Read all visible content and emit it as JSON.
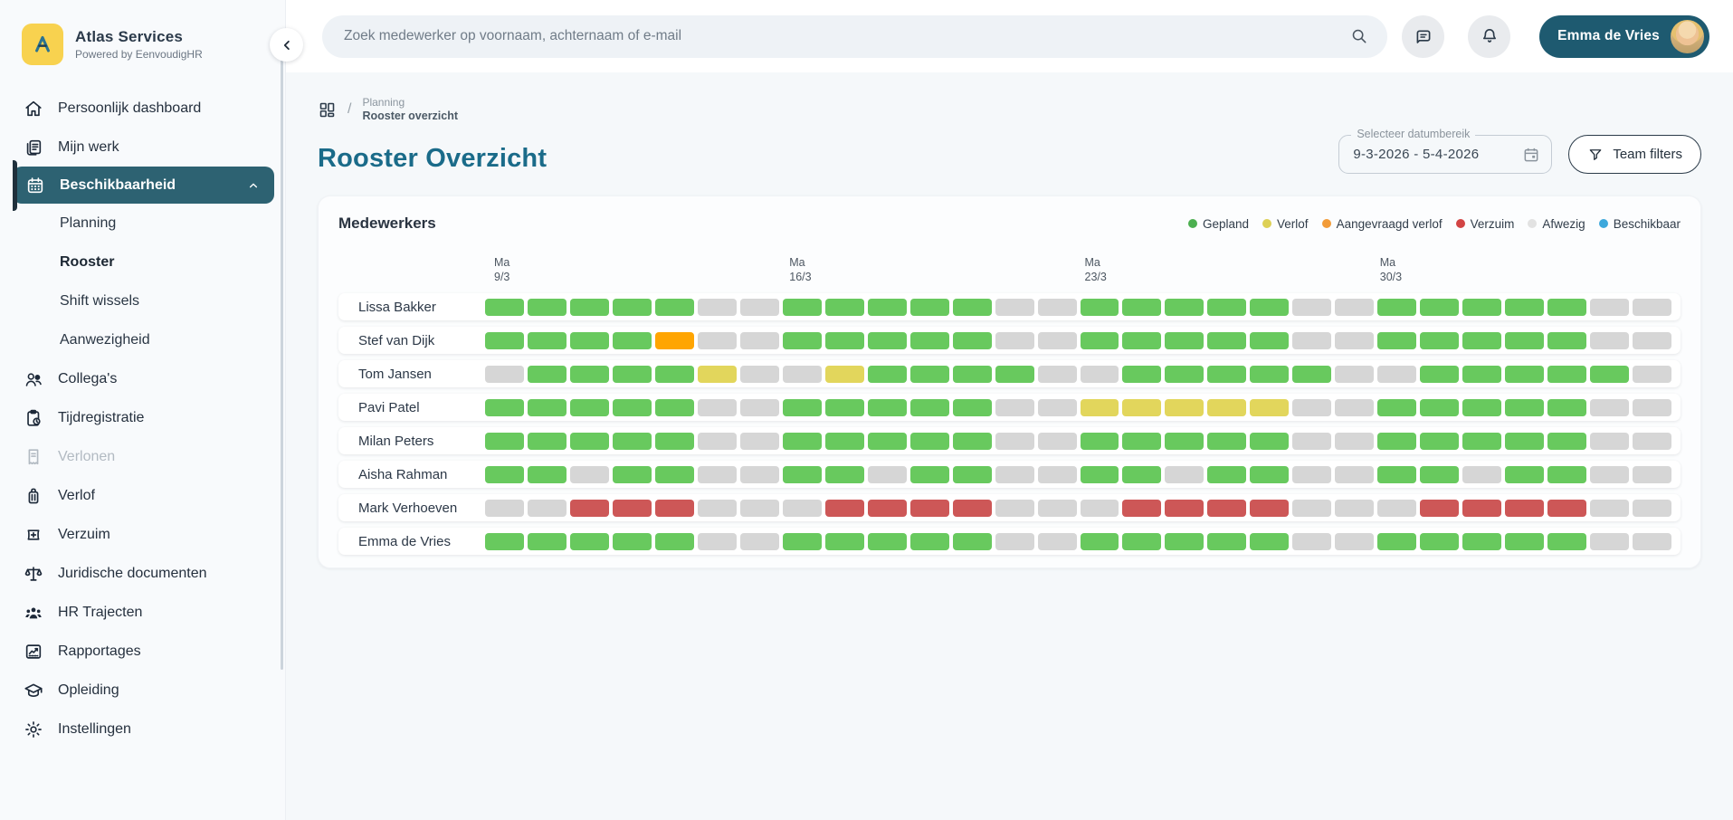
{
  "brand": {
    "name": "Atlas Services",
    "subtitle": "Powered by EenvoudigHR",
    "logo_letter": "A",
    "logo_bg": "#f8d24f"
  },
  "sidebar": {
    "items": [
      {
        "id": "persoonlijk-dashboard",
        "label": "Persoonlijk dashboard",
        "icon": "home"
      },
      {
        "id": "mijn-werk",
        "label": "Mijn werk",
        "icon": "journal"
      },
      {
        "id": "beschikbaarheid",
        "label": "Beschikbaarheid",
        "icon": "calendar",
        "active": true,
        "expanded": true,
        "children": [
          {
            "label": "Planning",
            "active": false
          },
          {
            "label": "Rooster",
            "active": true
          },
          {
            "label": "Shift wissels",
            "active": false
          },
          {
            "label": "Aanwezigheid",
            "active": false
          }
        ]
      },
      {
        "id": "collegas",
        "label": "Collega's",
        "icon": "people"
      },
      {
        "id": "tijdregistratie",
        "label": "Tijdregistratie",
        "icon": "clipboard-clock"
      },
      {
        "id": "verlonen",
        "label": "Verlonen",
        "icon": "receipt",
        "disabled": true
      },
      {
        "id": "verlof",
        "label": "Verlof",
        "icon": "suitcase"
      },
      {
        "id": "verzuim",
        "label": "Verzuim",
        "icon": "bandage"
      },
      {
        "id": "juridische-documenten",
        "label": "Juridische documenten",
        "icon": "scale"
      },
      {
        "id": "hr-trajecten",
        "label": "HR Trajecten",
        "icon": "people-group"
      },
      {
        "id": "rapportages",
        "label": "Rapportages",
        "icon": "chart"
      },
      {
        "id": "opleiding",
        "label": "Opleiding",
        "icon": "graduation-cap"
      },
      {
        "id": "instellingen",
        "label": "Instellingen",
        "icon": "gear"
      }
    ]
  },
  "topbar": {
    "search_placeholder": "Zoek medewerker op voornaam, achternaam of e-mail",
    "user_name": "Emma de Vries"
  },
  "breadcrumb": {
    "section": "Planning",
    "page": "Rooster overzicht"
  },
  "page": {
    "title": "Rooster Overzicht",
    "date_filter_label": "Selecteer datumbereik",
    "date_filter_value": "9-3-2026  - 5-4-2026",
    "team_filters_label": "Team filters"
  },
  "panel": {
    "title": "Medewerkers"
  },
  "legend": [
    {
      "code": "G",
      "label": "Gepland",
      "color": "#4caf50"
    },
    {
      "code": "Y",
      "label": "Verlof",
      "color": "#ddd055"
    },
    {
      "code": "O",
      "label": "Aangevraagd verlof",
      "color": "#f29b38"
    },
    {
      "code": "R",
      "label": "Verzuim",
      "color": "#d24444"
    },
    {
      "code": "A",
      "label": "Afwezig",
      "color": "#e2e2e2"
    },
    {
      "code": "B",
      "label": "Beschikbaar",
      "color": "#3da8dc"
    }
  ],
  "chart_data": {
    "type": "heatmap",
    "title": "Medewerkers",
    "x_tick_labels": [
      "Ma 9/3",
      "Ma 16/3",
      "Ma 23/3",
      "Ma 30/3"
    ],
    "days_per_week": 7,
    "num_days": 28,
    "week_starts": [
      {
        "day": "Ma",
        "date": "9/3"
      },
      {
        "day": "Ma",
        "date": "16/3"
      },
      {
        "day": "Ma",
        "date": "23/3"
      },
      {
        "day": "Ma",
        "date": "30/3"
      }
    ],
    "status_codes": {
      "G": "Gepland",
      "Y": "Verlof",
      "O": "Aangevraagd verlof",
      "R": "Verzuim",
      "A": "Afwezig",
      "B": "Beschikbaar"
    },
    "cell_colors": {
      "G": "#68c95e",
      "Y": "#e2d65c",
      "O": "#ffa502",
      "R": "#cd5757",
      "A": "#d6d6d6",
      "B": "#3da8dc"
    },
    "employees": [
      {
        "name": "Lissa Bakker",
        "days": "GGGGGAA GGGGGAA GGGGGAA GGGGGAA"
      },
      {
        "name": "Stef van Dijk",
        "days": "GGGGOAA GGGGGAA GGGGGAA GGGGGAA"
      },
      {
        "name": "Tom Jansen",
        "days": "AGGGGYA AYGGGGA AGGGGGA AGGGGGA"
      },
      {
        "name": "Pavi Patel",
        "days": "GGGGGAA GGGGGAA YYYYYAA GGGGGAA"
      },
      {
        "name": "Milan Peters",
        "days": "GGGGGAA GGGGGAA GGGGGAA GGGGGAA"
      },
      {
        "name": "Aisha Rahman",
        "days": "GGAGGAA GGAGGAA GGAGGAA GGAGGAA"
      },
      {
        "name": "Mark Verhoeven",
        "days": "AARRRAA ARRRRAA ARRRRAA ARRRRAA"
      },
      {
        "name": "Emma de Vries",
        "days": "GGGGGAA GGGGGAA GGGGGAA GGGGGAA"
      }
    ]
  }
}
